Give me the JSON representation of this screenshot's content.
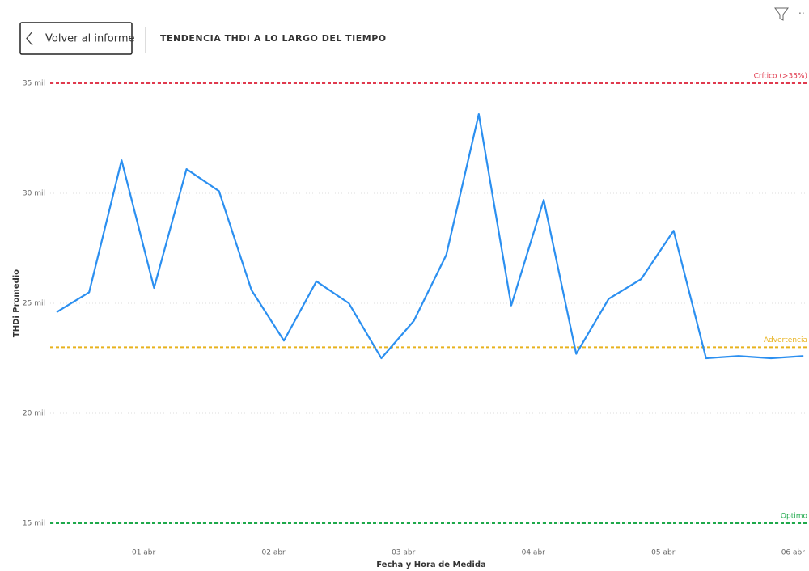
{
  "back_button": "Volver al informe",
  "chart_data": {
    "type": "line",
    "title": "TENDENCIA THDI A LO LARGO DEL TIEMPO",
    "x_label": "Fecha y Hora de Medida",
    "y_label": "THDi Promedio",
    "x": [
      0.33,
      0.58,
      0.83,
      1.08,
      1.33,
      1.58,
      1.83,
      2.08,
      2.33,
      2.58,
      2.83,
      3.08,
      3.33,
      3.58,
      3.83,
      4.08,
      4.33,
      4.58,
      4.83,
      5.08,
      5.33,
      5.58,
      5.83,
      6.08
    ],
    "series": [
      {
        "name": "THDi Promedio",
        "color": "#2b8ff0",
        "values": [
          24600,
          25500,
          31500,
          25700,
          31100,
          30100,
          25600,
          23300,
          26000,
          25000,
          22500,
          24200,
          27200,
          33600,
          24900,
          29700,
          22700,
          25200,
          26100,
          28300,
          22500,
          22600,
          22500,
          22600
        ]
      }
    ],
    "xlim": [
      0.28,
      6.11
    ],
    "xticks": [
      {
        "value": 1,
        "label": "01 abr"
      },
      {
        "value": 2,
        "label": "02 abr"
      },
      {
        "value": 3,
        "label": "03 abr"
      },
      {
        "value": 4,
        "label": "04 abr"
      },
      {
        "value": 5,
        "label": "05 abr"
      },
      {
        "value": 6,
        "label": "06 abr"
      }
    ],
    "ylim": [
      15000,
      35000
    ],
    "yticks": [
      {
        "value": 15000,
        "label": "15 mil"
      },
      {
        "value": 20000,
        "label": "20 mil"
      },
      {
        "value": 25000,
        "label": "25 mil"
      },
      {
        "value": 30000,
        "label": "30 mil"
      },
      {
        "value": 35000,
        "label": "35 mil"
      }
    ],
    "grid": true,
    "reference_lines": [
      {
        "value": 35000,
        "label": "Crítico (>35%)",
        "color": "#e03a4e"
      },
      {
        "value": 23000,
        "label": "Advertencia",
        "color": "#e8b21e"
      },
      {
        "value": 15000,
        "label": "Optimo",
        "color": "#1ea94b"
      }
    ]
  }
}
